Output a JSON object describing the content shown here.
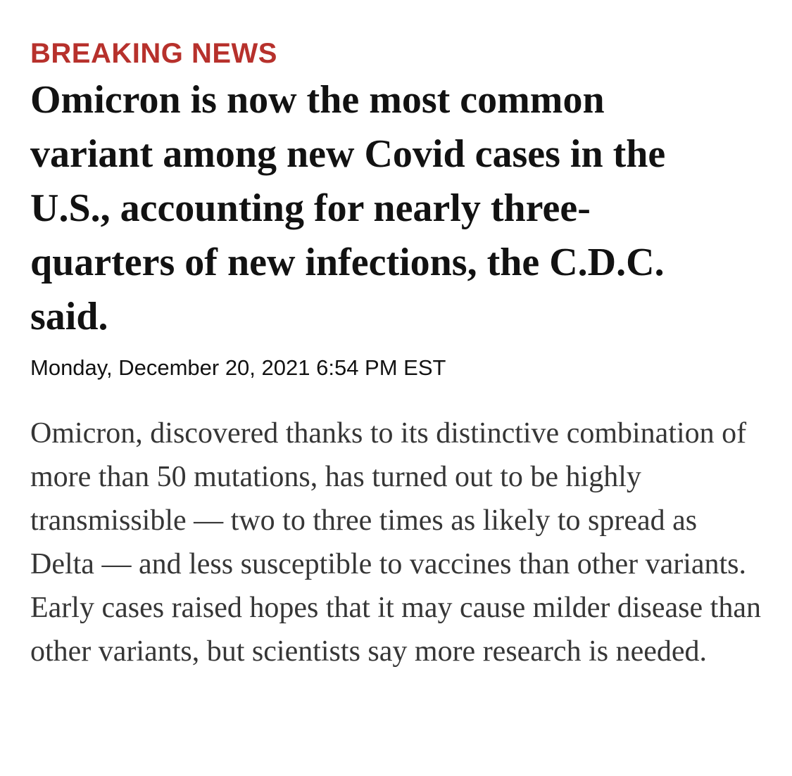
{
  "colors": {
    "kicker": "#b7312c",
    "headline": "#121212",
    "body": "#363636",
    "background": "#ffffff"
  },
  "article": {
    "kicker": "BREAKING NEWS",
    "headline": "Omicron is now the most common variant among new Covid cases in the U.S., accounting for nearly three-quarters of new infections, the C.D.C. said.",
    "timestamp": "Monday, December 20, 2021 6:54 PM EST",
    "body": "Omicron, discovered thanks to its distinctive combination of more than 50 mutations, has turned out to be highly transmissible — two to three times as likely to spread as Delta — and less susceptible to vaccines than other variants. Early cases raised hopes that it may cause milder disease than other variants, but scientists say more research is needed."
  }
}
